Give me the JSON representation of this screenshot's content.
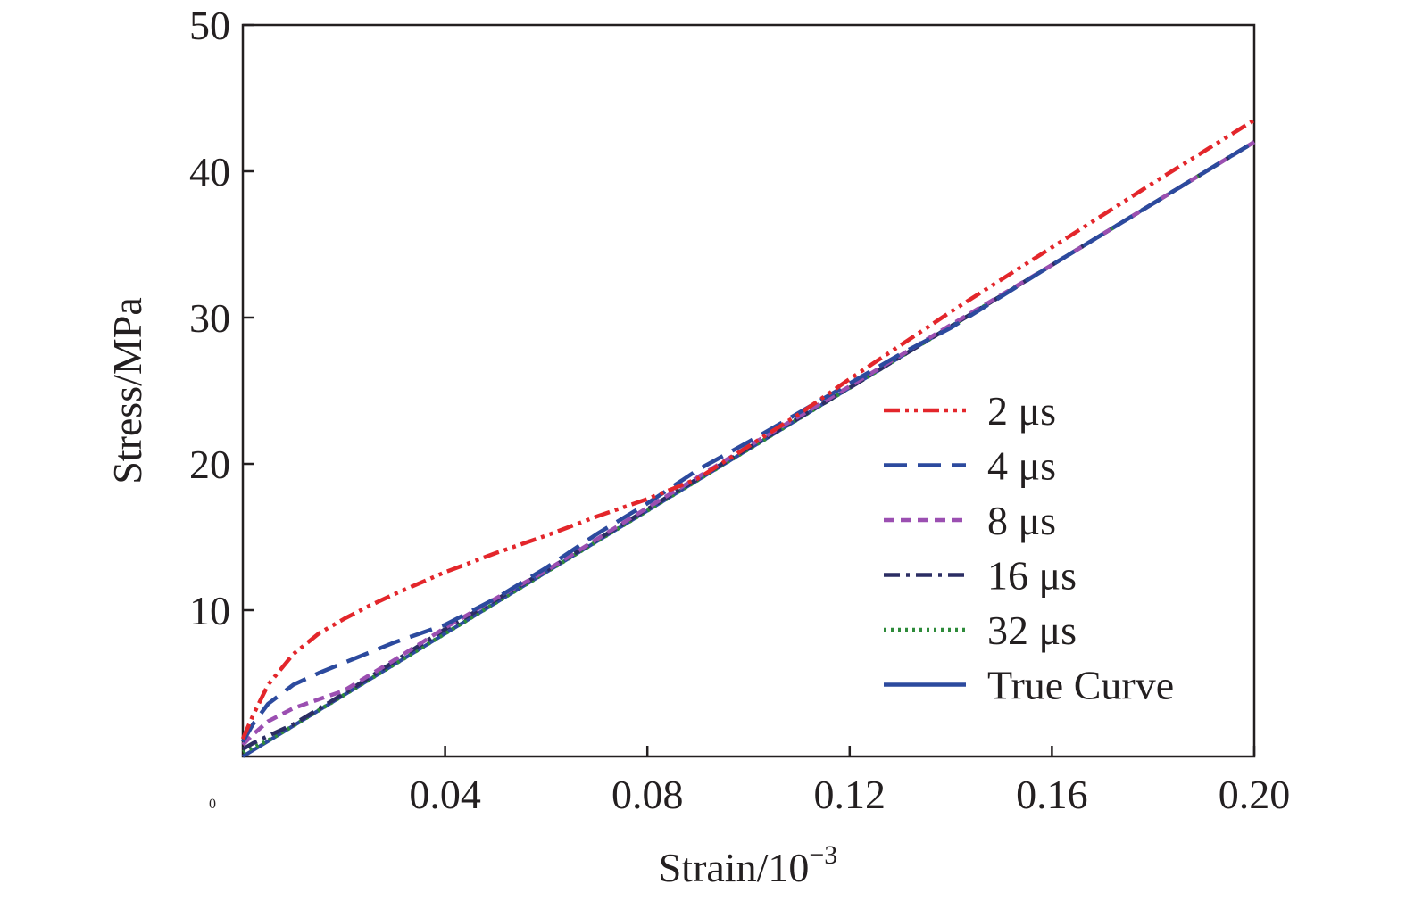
{
  "chart_data": {
    "type": "line",
    "title": "",
    "xlabel": "Strain/10",
    "xlabel_superscript": "−3",
    "ylabel": "Stress/MPa",
    "xlim": [
      0,
      0.2
    ],
    "ylim": [
      0,
      50
    ],
    "origin_label": "0",
    "xticks": [
      0.04,
      0.08,
      0.12,
      0.16,
      0.2
    ],
    "xtick_labels": [
      "0.04",
      "0.08",
      "0.12",
      "0.16",
      "0.20"
    ],
    "yticks": [
      10,
      20,
      30,
      40,
      50
    ],
    "ytick_labels": [
      "10",
      "20",
      "30",
      "40",
      "50"
    ],
    "grid": false,
    "legend_position": "lower-right",
    "series": [
      {
        "name": "2 μs",
        "color": "#e3262b",
        "dash": "dash-dot-dot",
        "x": [
          0,
          0.002,
          0.005,
          0.01,
          0.015,
          0.02,
          0.025,
          0.03,
          0.04,
          0.05,
          0.06,
          0.07,
          0.08,
          0.085,
          0.09,
          0.1,
          0.11,
          0.12,
          0.13,
          0.14,
          0.16,
          0.18,
          0.2
        ],
        "y": [
          1.2,
          2.8,
          4.9,
          7.0,
          8.4,
          9.4,
          10.3,
          11.1,
          12.6,
          13.9,
          15.1,
          16.4,
          17.6,
          18.3,
          19.0,
          21.2,
          23.4,
          25.8,
          28.1,
          30.4,
          34.8,
          39.2,
          43.5
        ]
      },
      {
        "name": "4 μs",
        "color": "#2c4a9e",
        "dash": "dash",
        "x": [
          0,
          0.002,
          0.005,
          0.01,
          0.015,
          0.02,
          0.025,
          0.03,
          0.035,
          0.04,
          0.05,
          0.06,
          0.07,
          0.08,
          0.09,
          0.1,
          0.11,
          0.12,
          0.13,
          0.14,
          0.16,
          0.18,
          0.2
        ],
        "y": [
          1.0,
          2.2,
          3.6,
          4.9,
          5.7,
          6.4,
          7.1,
          7.8,
          8.4,
          9.0,
          10.8,
          12.9,
          15.2,
          17.3,
          19.6,
          21.5,
          23.5,
          25.5,
          27.5,
          29.3,
          33.6,
          37.8,
          42.0
        ]
      },
      {
        "name": "8 μs",
        "color": "#9b4fb1",
        "dash": "short-dash",
        "x": [
          0,
          0.002,
          0.005,
          0.01,
          0.015,
          0.02,
          0.03,
          0.04,
          0.05,
          0.06,
          0.08,
          0.1,
          0.12,
          0.14,
          0.16,
          0.18,
          0.2
        ],
        "y": [
          0.8,
          1.5,
          2.4,
          3.3,
          3.9,
          4.5,
          6.6,
          8.8,
          10.8,
          12.7,
          17.0,
          21.2,
          25.3,
          29.5,
          33.6,
          37.8,
          42.0
        ]
      },
      {
        "name": "16 μs",
        "color": "#2b2d63",
        "dash": "dash-dot",
        "x": [
          0,
          0.002,
          0.005,
          0.01,
          0.02,
          0.03,
          0.04,
          0.06,
          0.08,
          0.1,
          0.12,
          0.14,
          0.16,
          0.18,
          0.2
        ],
        "y": [
          0.5,
          0.9,
          1.4,
          2.2,
          4.3,
          6.5,
          8.7,
          12.7,
          16.9,
          21.1,
          25.2,
          29.4,
          33.6,
          37.8,
          42.0
        ]
      },
      {
        "name": "32 μs",
        "color": "#2e8b3a",
        "dash": "dot",
        "x": [
          0,
          0.002,
          0.005,
          0.01,
          0.02,
          0.04,
          0.08,
          0.12,
          0.16,
          0.2
        ],
        "y": [
          0.3,
          0.6,
          1.1,
          2.1,
          4.2,
          8.4,
          16.8,
          25.2,
          33.6,
          42.0
        ]
      },
      {
        "name": "True Curve",
        "color": "#2c4a9e",
        "dash": "solid",
        "x": [
          0,
          0.2
        ],
        "y": [
          0,
          42.0
        ]
      }
    ]
  }
}
